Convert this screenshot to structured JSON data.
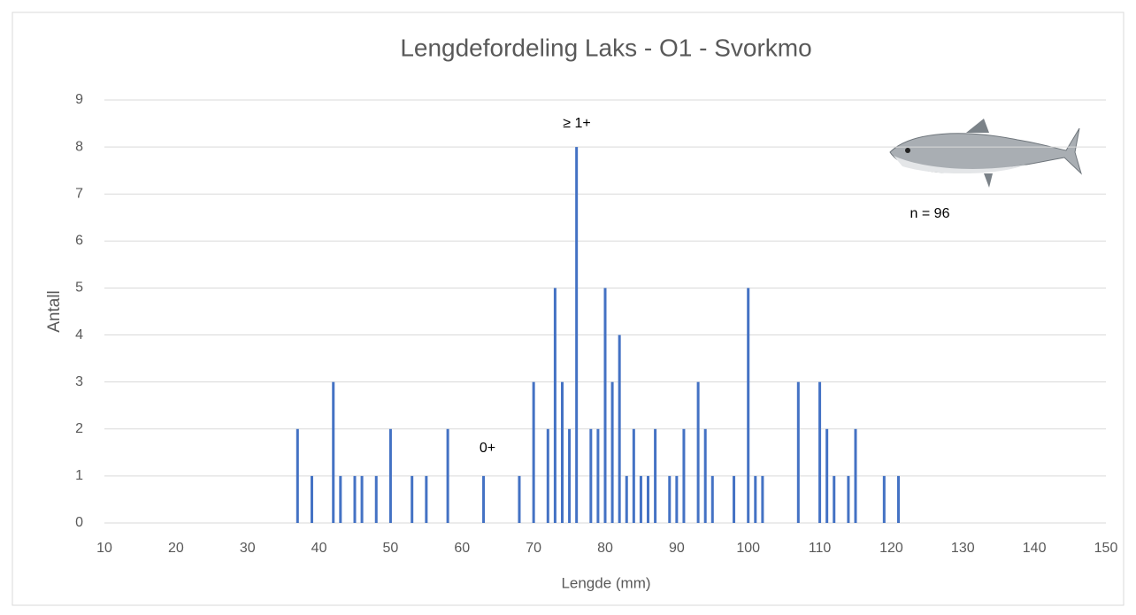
{
  "chart_data": {
    "type": "bar",
    "title": "Lengdefordeling Laks - O1 - Svorkmo",
    "x_label": "Lengde (mm)",
    "y_label": "Antall",
    "annotations": [
      "≥ 1+",
      "0+",
      "n = 96"
    ],
    "x": [
      37,
      39,
      42,
      43,
      45,
      46,
      48,
      50,
      53,
      55,
      58,
      63,
      68,
      70,
      72,
      73,
      74,
      75,
      76,
      78,
      79,
      80,
      81,
      82,
      83,
      84,
      85,
      86,
      87,
      89,
      90,
      91,
      93,
      94,
      95,
      98,
      100,
      101,
      102,
      107,
      110,
      111,
      112,
      114,
      115,
      119,
      121
    ],
    "values": [
      2,
      1,
      3,
      1,
      1,
      1,
      1,
      2,
      1,
      1,
      2,
      1,
      1,
      3,
      2,
      5,
      3,
      2,
      8,
      2,
      2,
      5,
      3,
      4,
      1,
      2,
      1,
      1,
      2,
      1,
      1,
      2,
      3,
      2,
      1,
      1,
      5,
      1,
      1,
      3,
      3,
      2,
      1,
      1,
      2,
      1,
      1
    ],
    "color": "#4472c4",
    "xlim": [
      10,
      150
    ],
    "xticks": [
      10,
      20,
      30,
      40,
      50,
      60,
      70,
      80,
      90,
      100,
      110,
      120,
      130,
      140,
      150
    ],
    "ylim": [
      0,
      9
    ],
    "yticks": [
      0,
      1,
      2,
      3,
      4,
      5,
      6,
      7,
      8,
      9
    ],
    "grid": true
  }
}
